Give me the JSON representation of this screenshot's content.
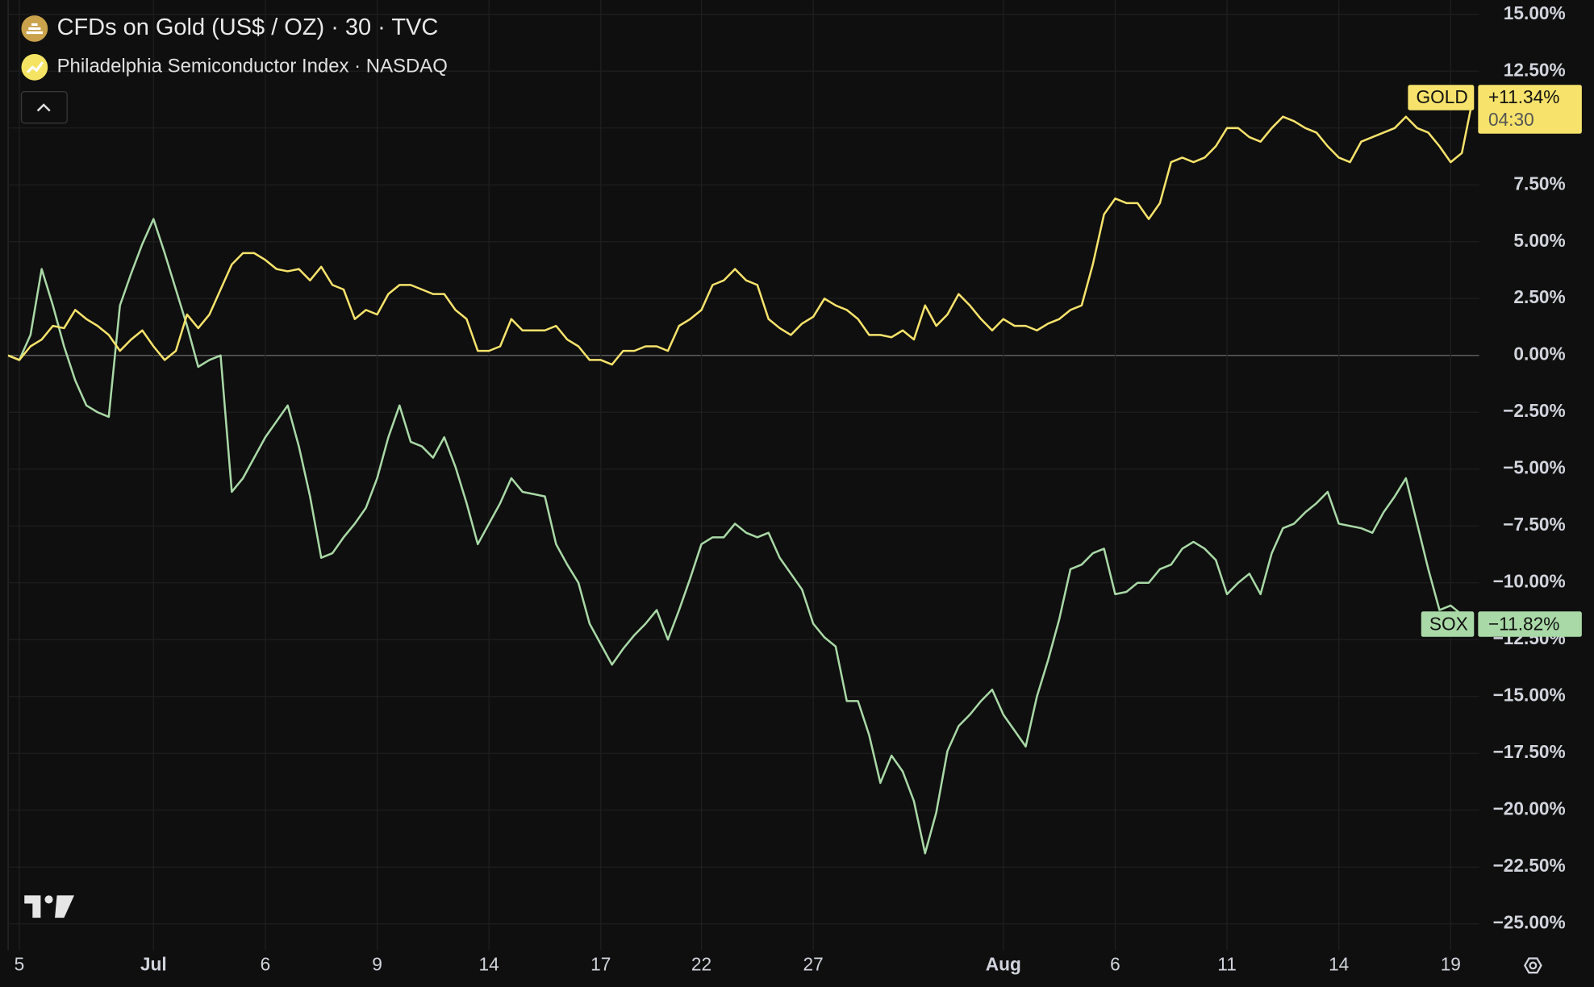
{
  "chart_data": {
    "type": "line",
    "legend_items": [
      "CFDs on Gold (US$ / OZ) · 30 · TVC",
      "Philadelphia Semiconductor Index · NASDAQ"
    ],
    "categories": [
      null,
      "5",
      null,
      null,
      null,
      null,
      null,
      null,
      null,
      null,
      null,
      null,
      null,
      "Jul",
      null,
      null,
      null,
      null,
      null,
      null,
      null,
      null,
      null,
      "6",
      null,
      null,
      null,
      null,
      null,
      null,
      null,
      null,
      null,
      "9",
      null,
      null,
      null,
      null,
      null,
      null,
      null,
      null,
      null,
      "14",
      null,
      null,
      null,
      null,
      null,
      null,
      null,
      null,
      null,
      "17",
      null,
      null,
      null,
      null,
      null,
      null,
      null,
      null,
      "22",
      null,
      null,
      null,
      null,
      null,
      null,
      null,
      null,
      null,
      "27",
      null,
      null,
      null,
      null,
      null,
      null,
      null,
      null,
      null,
      null,
      null,
      null,
      null,
      null,
      null,
      null,
      "Aug",
      null,
      null,
      null,
      null,
      null,
      null,
      null,
      null,
      null,
      "6",
      null,
      null,
      null,
      null,
      null,
      null,
      null,
      null,
      null,
      "11",
      null,
      null,
      null,
      null,
      null,
      null,
      null,
      null,
      null,
      "14",
      null,
      null,
      null,
      null,
      null,
      null,
      null,
      null,
      null,
      "19",
      null,
      null
    ],
    "series": [
      {
        "name": "GOLD",
        "color": "#f7e36b",
        "label_text_color": "#111111",
        "last_label": "+11.34%",
        "countdown": "04:30",
        "values": [
          0,
          -0.2,
          0.4,
          0.7,
          1.3,
          1.2,
          2.0,
          1.6,
          1.3,
          0.9,
          0.2,
          0.7,
          1.1,
          0.4,
          -0.2,
          0.2,
          1.8,
          1.2,
          1.8,
          2.9,
          4.0,
          4.5,
          4.5,
          4.2,
          3.8,
          3.7,
          3.8,
          3.3,
          3.9,
          3.1,
          2.9,
          1.6,
          2.0,
          1.8,
          2.7,
          3.1,
          3.1,
          2.9,
          2.7,
          2.7,
          2.0,
          1.6,
          0.2,
          0.2,
          0.4,
          1.6,
          1.1,
          1.1,
          1.1,
          1.3,
          0.7,
          0.4,
          -0.2,
          -0.2,
          -0.4,
          0.2,
          0.2,
          0.4,
          0.4,
          0.2,
          1.3,
          1.6,
          2.0,
          3.1,
          3.3,
          3.8,
          3.3,
          3.1,
          1.6,
          1.2,
          0.9,
          1.4,
          1.7,
          2.5,
          2.2,
          2.0,
          1.6,
          0.9,
          0.9,
          0.8,
          1.1,
          0.7,
          2.2,
          1.3,
          1.8,
          2.7,
          2.2,
          1.6,
          1.1,
          1.6,
          1.3,
          1.3,
          1.1,
          1.4,
          1.6,
          2.0,
          2.2,
          4.0,
          6.2,
          6.9,
          6.7,
          6.7,
          6.0,
          6.7,
          8.5,
          8.7,
          8.5,
          8.7,
          9.2,
          10.0,
          10.0,
          9.6,
          9.4,
          10.0,
          10.5,
          10.3,
          10.0,
          9.8,
          9.2,
          8.7,
          8.5,
          9.4,
          9.6,
          9.8,
          10.0,
          10.5,
          10.0,
          9.8,
          9.2,
          8.5,
          8.9,
          11.34
        ]
      },
      {
        "name": "SOX",
        "color": "#a9d9a6",
        "label_text_color": "#111111",
        "last_label": "−11.82%",
        "values": [
          0,
          -0.2,
          0.9,
          3.8,
          2.2,
          0.4,
          -1.1,
          -2.2,
          -2.5,
          -2.7,
          2.2,
          3.6,
          4.9,
          6.0,
          4.5,
          2.9,
          1.3,
          -0.5,
          -0.2,
          0,
          -6.0,
          -5.4,
          -4.5,
          -3.6,
          -2.9,
          -2.2,
          -4.0,
          -6.2,
          -8.9,
          -8.7,
          -8.0,
          -7.4,
          -6.7,
          -5.4,
          -3.6,
          -2.2,
          -3.8,
          -4.0,
          -4.5,
          -3.6,
          -4.9,
          -6.5,
          -8.3,
          -7.4,
          -6.5,
          -5.4,
          -6.0,
          -6.1,
          -6.2,
          -8.3,
          -9.2,
          -10.0,
          -11.8,
          -12.7,
          -13.6,
          -12.9,
          -12.3,
          -11.8,
          -11.2,
          -12.5,
          -11.2,
          -9.8,
          -8.3,
          -8.0,
          -8.0,
          -7.4,
          -7.8,
          -8.0,
          -7.8,
          -8.9,
          -9.6,
          -10.3,
          -11.8,
          -12.4,
          -12.8,
          -15.2,
          -15.2,
          -16.7,
          -18.8,
          -17.6,
          -18.3,
          -19.6,
          -21.9,
          -20.1,
          -17.4,
          -16.3,
          -15.8,
          -15.2,
          -14.7,
          -15.8,
          -16.5,
          -17.2,
          -15.0,
          -13.4,
          -11.6,
          -9.4,
          -9.2,
          -8.7,
          -8.5,
          -10.5,
          -10.4,
          -10.0,
          -10.0,
          -9.4,
          -9.2,
          -8.5,
          -8.2,
          -8.5,
          -9.0,
          -10.5,
          -10.0,
          -9.6,
          -10.5,
          -8.7,
          -7.6,
          -7.4,
          -6.9,
          -6.5,
          -6.0,
          -7.4,
          -7.5,
          -7.6,
          -7.8,
          -6.9,
          -6.2,
          -5.4,
          -7.4,
          -9.4,
          -11.2,
          -11.0,
          -11.4,
          -11.82
        ]
      }
    ],
    "ylim": [
      -25,
      15
    ],
    "yticks": [
      {
        "value": 15,
        "label": "15.00%"
      },
      {
        "value": 12.5,
        "label": "12.50%"
      },
      {
        "value": 10,
        "label": "10.00%"
      },
      {
        "value": 7.5,
        "label": "7.50%"
      },
      {
        "value": 5,
        "label": "5.00%"
      },
      {
        "value": 2.5,
        "label": "2.50%"
      },
      {
        "value": 0,
        "label": "0.00%"
      },
      {
        "value": -2.5,
        "label": "−2.50%"
      },
      {
        "value": -5,
        "label": "−5.00%"
      },
      {
        "value": -7.5,
        "label": "−7.50%"
      },
      {
        "value": -10,
        "label": "−10.00%"
      },
      {
        "value": -12.5,
        "label": "−12.50%"
      },
      {
        "value": -15,
        "label": "−15.00%"
      },
      {
        "value": -17.5,
        "label": "−17.50%"
      },
      {
        "value": -20,
        "label": "−20.00%"
      },
      {
        "value": -22.5,
        "label": "−22.50%"
      },
      {
        "value": -25,
        "label": "−25.00%"
      }
    ],
    "grid": true
  }
}
